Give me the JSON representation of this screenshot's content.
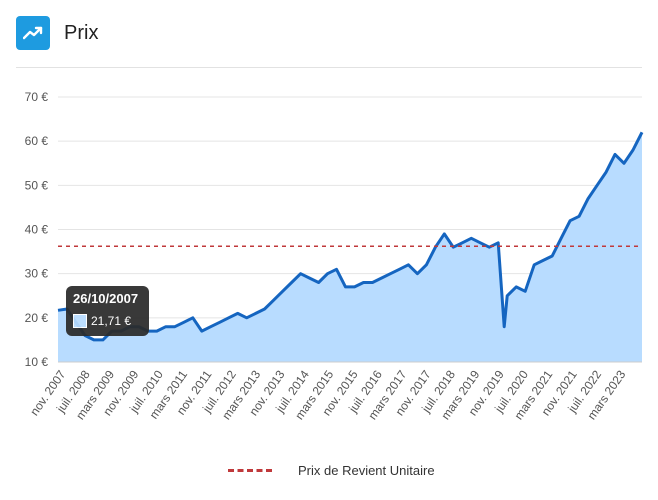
{
  "header": {
    "title": "Prix",
    "icon": "trending-up-icon",
    "icon_color": "#1e9be0"
  },
  "tooltip": {
    "date": "26/10/2007",
    "value": "21,71 €"
  },
  "legend": {
    "label": "Prix de Revient Unitaire",
    "color": "#c0393b"
  },
  "chart_data": {
    "type": "area",
    "y_ticks": [
      "10 €",
      "20 €",
      "30 €",
      "40 €",
      "50 €",
      "60 €",
      "70 €"
    ],
    "ylim": [
      10,
      70
    ],
    "x_ticks": [
      "nov. 2007",
      "juil. 2008",
      "mars 2009",
      "nov. 2009",
      "juil. 2010",
      "mars 2011",
      "nov. 2011",
      "juil. 2012",
      "mars 2013",
      "nov. 2013",
      "juil. 2014",
      "mars 2015",
      "nov. 2015",
      "juil. 2016",
      "mars 2017",
      "nov. 2017",
      "juil. 2018",
      "mars 2019",
      "nov. 2019",
      "juil. 2020",
      "mars 2021",
      "nov. 2021",
      "juil. 2022",
      "mars 2023"
    ],
    "x": [
      "2007-10",
      "2008-01",
      "2008-04",
      "2008-07",
      "2008-10",
      "2009-01",
      "2009-04",
      "2009-07",
      "2009-10",
      "2010-01",
      "2010-04",
      "2010-07",
      "2010-10",
      "2011-01",
      "2011-04",
      "2011-07",
      "2011-10",
      "2012-01",
      "2012-04",
      "2012-07",
      "2012-10",
      "2013-01",
      "2013-04",
      "2013-07",
      "2013-10",
      "2014-01",
      "2014-04",
      "2014-07",
      "2014-10",
      "2015-01",
      "2015-04",
      "2015-07",
      "2015-10",
      "2016-01",
      "2016-04",
      "2016-07",
      "2016-10",
      "2017-01",
      "2017-04",
      "2017-07",
      "2017-10",
      "2018-01",
      "2018-04",
      "2018-07",
      "2018-10",
      "2019-01",
      "2019-04",
      "2019-07",
      "2019-10",
      "2020-01",
      "2020-03",
      "2020-04",
      "2020-07",
      "2020-10",
      "2021-01",
      "2021-04",
      "2021-07",
      "2021-10",
      "2022-01",
      "2022-04",
      "2022-07",
      "2022-10",
      "2023-01",
      "2023-04",
      "2023-07",
      "2023-10",
      "2024-01"
    ],
    "series": [
      {
        "values": [
          21.7,
          22,
          19,
          16,
          15,
          15,
          17,
          17,
          18,
          18,
          17,
          17,
          18,
          18,
          19,
          20,
          17,
          18,
          19,
          20,
          21,
          20,
          21,
          22,
          24,
          26,
          28,
          30,
          29,
          28,
          30,
          31,
          27,
          27,
          28,
          28,
          29,
          30,
          31,
          32,
          30,
          32,
          36,
          39,
          36,
          37,
          38,
          37,
          36,
          37,
          18,
          25,
          27,
          26,
          32,
          33,
          34,
          38,
          42,
          43,
          47,
          50,
          53,
          57,
          55,
          58,
          62
        ]
      }
    ],
    "reference_line": {
      "name": "Prix de Revient Unitaire",
      "value": 36.2
    },
    "area_color": "#b8dcff",
    "line_color": "#1565c0",
    "grid": true,
    "legend_position": "bottom"
  }
}
